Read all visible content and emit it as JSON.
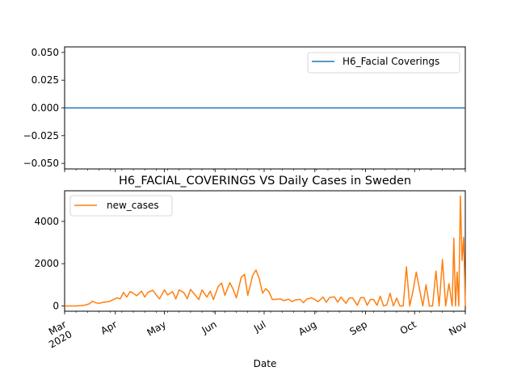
{
  "chart_data": [
    {
      "type": "line",
      "title": "",
      "xlabel": "",
      "ylabel": "",
      "ylim": [
        -0.055,
        0.055
      ],
      "yticks": [
        "0.050",
        "0.025",
        "0.000",
        "−0.025",
        "−0.050"
      ],
      "ytick_values": [
        0.05,
        0.025,
        0.0,
        -0.025,
        -0.05
      ],
      "grid": false,
      "legend": {
        "placement": "upper-right",
        "entries": [
          {
            "label": "H6_Facial Coverings",
            "color": "#1f77b4"
          }
        ]
      },
      "series": [
        {
          "name": "H6_Facial Coverings",
          "color": "#1f77b4",
          "x_start": "2020-03-01",
          "x_end": "2020-11-01",
          "constant_value": 0
        }
      ]
    },
    {
      "type": "line",
      "title": "H6_FACIAL_COVERINGS VS Daily Cases in Sweden",
      "xlabel": "Date",
      "ylabel": "",
      "ylim": [
        -250,
        5450
      ],
      "yticks": [
        "0",
        "2000",
        "4000"
      ],
      "ytick_values": [
        0,
        2000,
        4000
      ],
      "xlim": [
        "2020-03-01",
        "2020-11-01"
      ],
      "xtick_labels": [
        "Mar\n2020",
        "Apr",
        "May",
        "Jun",
        "Jul",
        "Aug",
        "Sep",
        "Oct",
        "Nov"
      ],
      "grid": false,
      "legend": {
        "placement": "upper-left",
        "entries": [
          {
            "label": "new_cases",
            "color": "#ff7f0e"
          }
        ]
      },
      "series": [
        {
          "name": "new_cases",
          "color": "#ff7f0e",
          "x": [
            "2020-03-01",
            "2020-03-08",
            "2020-03-12",
            "2020-03-14",
            "2020-03-16",
            "2020-03-18",
            "2020-03-20",
            "2020-03-22",
            "2020-03-25",
            "2020-03-28",
            "2020-03-31",
            "2020-04-02",
            "2020-04-04",
            "2020-04-06",
            "2020-04-08",
            "2020-04-10",
            "2020-04-12",
            "2020-04-14",
            "2020-04-17",
            "2020-04-19",
            "2020-04-21",
            "2020-04-24",
            "2020-04-26",
            "2020-04-28",
            "2020-05-01",
            "2020-05-03",
            "2020-05-06",
            "2020-05-08",
            "2020-05-10",
            "2020-05-13",
            "2020-05-15",
            "2020-05-17",
            "2020-05-20",
            "2020-05-22",
            "2020-05-24",
            "2020-05-27",
            "2020-05-29",
            "2020-05-31",
            "2020-06-03",
            "2020-06-05",
            "2020-06-07",
            "2020-06-10",
            "2020-06-12",
            "2020-06-14",
            "2020-06-17",
            "2020-06-19",
            "2020-06-21",
            "2020-06-24",
            "2020-06-26",
            "2020-06-28",
            "2020-06-30",
            "2020-07-02",
            "2020-07-04",
            "2020-07-06",
            "2020-07-09",
            "2020-07-11",
            "2020-07-13",
            "2020-07-16",
            "2020-07-18",
            "2020-07-20",
            "2020-07-23",
            "2020-07-25",
            "2020-07-27",
            "2020-07-30",
            "2020-08-01",
            "2020-08-03",
            "2020-08-06",
            "2020-08-08",
            "2020-08-10",
            "2020-08-13",
            "2020-08-15",
            "2020-08-17",
            "2020-08-20",
            "2020-08-22",
            "2020-08-24",
            "2020-08-27",
            "2020-08-29",
            "2020-08-31",
            "2020-09-02",
            "2020-09-04",
            "2020-09-06",
            "2020-09-08",
            "2020-09-10",
            "2020-09-12",
            "2020-09-14",
            "2020-09-16",
            "2020-09-18",
            "2020-09-20",
            "2020-09-22",
            "2020-09-24",
            "2020-09-26",
            "2020-09-28",
            "2020-09-30",
            "2020-10-02",
            "2020-10-04",
            "2020-10-06",
            "2020-10-08",
            "2020-10-10",
            "2020-10-12",
            "2020-10-14",
            "2020-10-16",
            "2020-10-18",
            "2020-10-20",
            "2020-10-22",
            "2020-10-24",
            "2020-10-25",
            "2020-10-26",
            "2020-10-27",
            "2020-10-28",
            "2020-10-29",
            "2020-10-30",
            "2020-10-31",
            "2020-11-01"
          ],
          "values": [
            0,
            0,
            20,
            50,
            100,
            220,
            150,
            120,
            180,
            200,
            300,
            380,
            330,
            640,
            420,
            680,
            600,
            480,
            700,
            420,
            650,
            740,
            520,
            330,
            760,
            520,
            680,
            330,
            760,
            620,
            340,
            780,
            500,
            300,
            760,
            420,
            700,
            300,
            940,
            1080,
            500,
            1100,
            800,
            380,
            1350,
            1500,
            500,
            1440,
            1700,
            1300,
            600,
            820,
            660,
            300,
            320,
            330,
            250,
            320,
            200,
            280,
            310,
            150,
            320,
            380,
            300,
            200,
            420,
            170,
            400,
            430,
            180,
            420,
            120,
            370,
            380,
            30,
            390,
            400,
            30,
            310,
            300,
            30,
            460,
            0,
            50,
            600,
            0,
            370,
            0,
            0,
            1850,
            0,
            700,
            1600,
            800,
            0,
            1000,
            0,
            0,
            1650,
            0,
            2200,
            0,
            1050,
            0,
            3200,
            0,
            1600,
            0,
            5200,
            2150,
            3250,
            0
          ]
        }
      ]
    }
  ]
}
